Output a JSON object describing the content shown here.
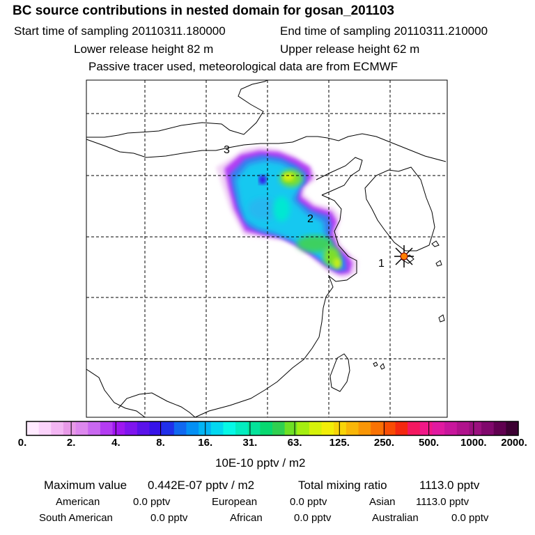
{
  "header": {
    "title": "BC  source contributions in nested domain for gosan_201103",
    "start_time": "Start time of sampling 20110311.180000",
    "end_time": "End time of sampling 20110311.210000",
    "lower_release": "Lower release height   82 m",
    "upper_release": "Upper release height   62 m",
    "tracer_note": "Passive tracer used, meteorological data are from ECMWF"
  },
  "map": {
    "labels": [
      "1",
      "2",
      "3"
    ],
    "receptor_marker_color": "#ff8000"
  },
  "colorbar": {
    "colors": [
      "#ffeaff",
      "#fbd3fb",
      "#f3b6f3",
      "#e89ae8",
      "#dd88ee",
      "#c968f0",
      "#b43cf2",
      "#9e16f0",
      "#7f14ee",
      "#5a12ea",
      "#3612e8",
      "#2030ea",
      "#1068f0",
      "#0490f4",
      "#02b4f4",
      "#02d8f0",
      "#06f8e6",
      "#04ecc0",
      "#04e29a",
      "#08d870",
      "#30d050",
      "#6ee024",
      "#a4ee10",
      "#d6f20a",
      "#f2ee08",
      "#f8d408",
      "#f8b608",
      "#f89606",
      "#f87204",
      "#f84c04",
      "#f42810",
      "#f41860",
      "#f01888",
      "#e01aa0",
      "#c8169c",
      "#b0128c",
      "#9a107e",
      "#80086c",
      "#600050",
      "#3c0032"
    ],
    "ticks": [
      "0.",
      "2.",
      "4.",
      "8.",
      "16.",
      "31.",
      "63.",
      "125.",
      "250.",
      "500.",
      "1000.",
      "2000."
    ],
    "units": "10E-10 pptv / m2"
  },
  "summary": {
    "max_label": "Maximum value",
    "max_value": "0.442E-07 pptv / m2",
    "total_label": "Total mixing ratio",
    "total_value": "1113.0 pptv",
    "regions": [
      {
        "name": "American",
        "value": "0.0 pptv"
      },
      {
        "name": "European",
        "value": "0.0 pptv"
      },
      {
        "name": "Asian",
        "value": "1113.0 pptv"
      },
      {
        "name": "South American",
        "value": "0.0 pptv"
      },
      {
        "name": "African",
        "value": "0.0 pptv"
      },
      {
        "name": "Australian",
        "value": "0.0 pptv"
      }
    ]
  }
}
